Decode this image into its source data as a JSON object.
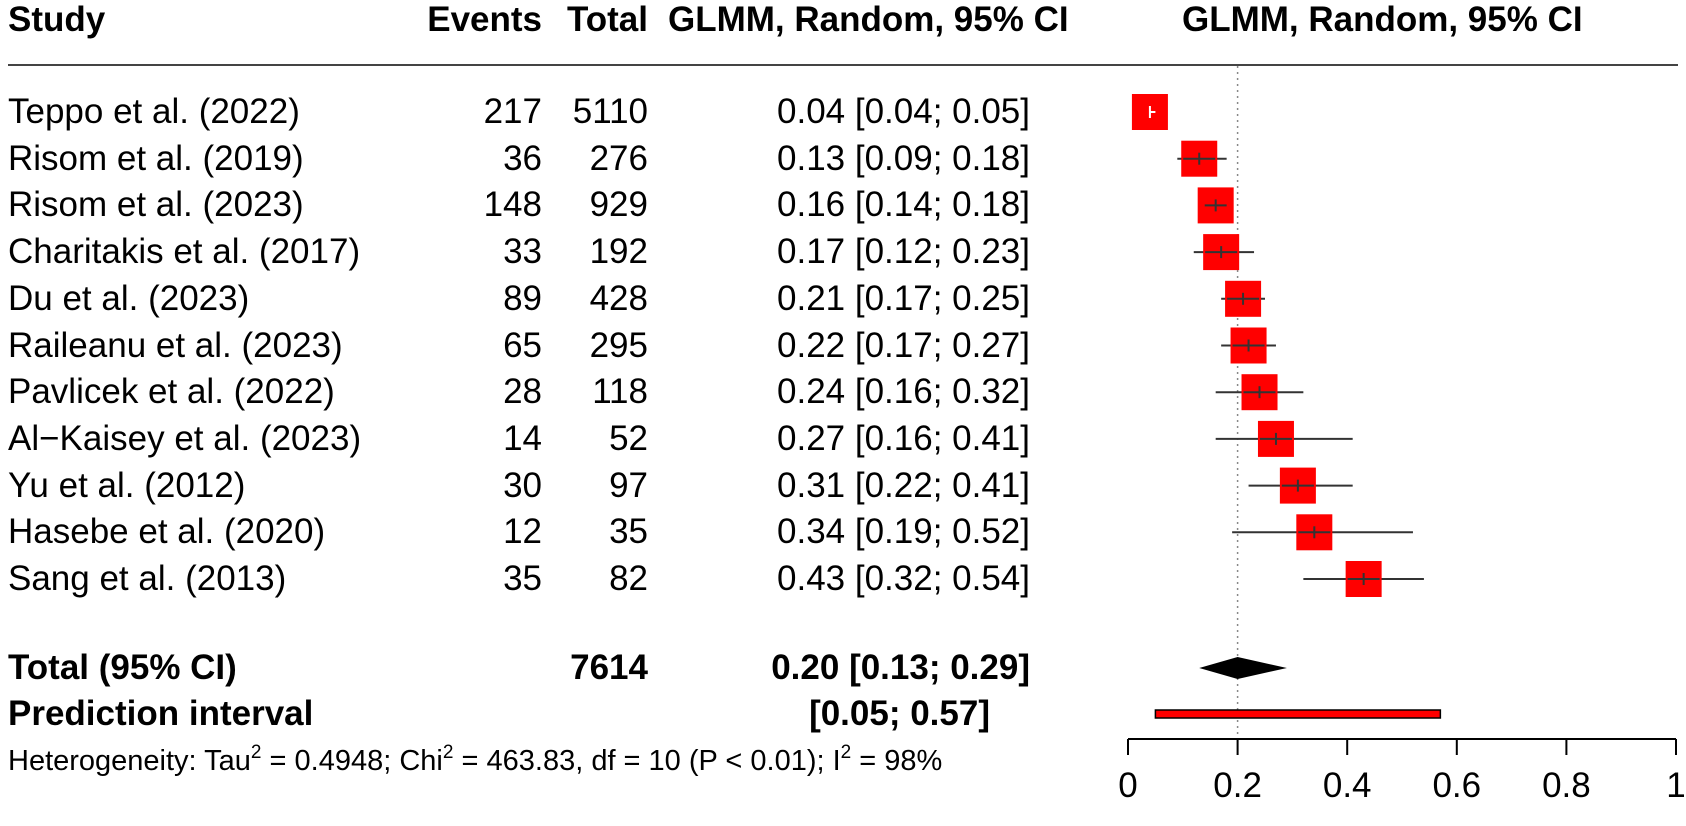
{
  "headers": {
    "study": "Study",
    "events": "Events",
    "total": "Total",
    "ci": "GLMM, Random, 95% CI",
    "plot": "GLMM, Random, 95% CI"
  },
  "studies": [
    {
      "name": "Teppo et al. (2022)",
      "events": "217",
      "total": "5110",
      "ci_text": "0.04 [0.04; 0.05]"
    },
    {
      "name": "Risom et al. (2019)",
      "events": "36",
      "total": "276",
      "ci_text": "0.13 [0.09; 0.18]"
    },
    {
      "name": "Risom et al. (2023)",
      "events": "148",
      "total": "929",
      "ci_text": "0.16 [0.14; 0.18]"
    },
    {
      "name": "Charitakis et al. (2017)",
      "events": "33",
      "total": "192",
      "ci_text": "0.17 [0.12; 0.23]"
    },
    {
      "name": "Du et al. (2023)",
      "events": "89",
      "total": "428",
      "ci_text": "0.21 [0.17; 0.25]"
    },
    {
      "name": "Raileanu et al. (2023)",
      "events": "65",
      "total": "295",
      "ci_text": "0.22 [0.17; 0.27]"
    },
    {
      "name": "Pavlicek et al. (2022)",
      "events": "28",
      "total": "118",
      "ci_text": "0.24 [0.16; 0.32]"
    },
    {
      "name": "Al−Kaisey et al. (2023)",
      "events": "14",
      "total": "52",
      "ci_text": "0.27 [0.16; 0.41]"
    },
    {
      "name": "Yu et al. (2012)",
      "events": "30",
      "total": "97",
      "ci_text": "0.31 [0.22; 0.41]"
    },
    {
      "name": "Hasebe et al. (2020)",
      "events": "12",
      "total": "35",
      "ci_text": "0.34 [0.19; 0.52]"
    },
    {
      "name": "Sang et al. (2013)",
      "events": "35",
      "total": "82",
      "ci_text": "0.43 [0.32; 0.54]"
    }
  ],
  "pooled": {
    "label": "Total (95% CI)",
    "total": "7614",
    "ci_text": "0.20 [0.13; 0.29]"
  },
  "prediction": {
    "label": "Prediction interval",
    "ci_text": "[0.05; 0.57]"
  },
  "heterogeneity": {
    "prefix": "Heterogeneity: Tau",
    "tau_sup": "2",
    "tau_value": " = 0.4948; Chi",
    "chi_sup": "2",
    "chi_value": " = 463.83, df = 10 (P < 0.01); I",
    "i_sup": "2",
    "i_value": " = 98%"
  },
  "colors": {
    "marker": "#ff0000",
    "ci_line": "#333333",
    "diamond": "#000000",
    "reference_line": "#888888"
  },
  "chart_data": {
    "type": "forest",
    "xlim": [
      0,
      1
    ],
    "ticks": [
      0,
      0.2,
      0.4,
      0.6,
      0.8,
      1
    ],
    "tick_labels": [
      "0",
      "0.2",
      "0.4",
      "0.6",
      "0.8",
      "1"
    ],
    "reference": 0.2,
    "studies": [
      {
        "name": "Teppo et al. (2022)",
        "est": 0.04,
        "lo": 0.04,
        "hi": 0.05
      },
      {
        "name": "Risom et al. (2019)",
        "est": 0.13,
        "lo": 0.09,
        "hi": 0.18
      },
      {
        "name": "Risom et al. (2023)",
        "est": 0.16,
        "lo": 0.14,
        "hi": 0.18
      },
      {
        "name": "Charitakis et al. (2017)",
        "est": 0.17,
        "lo": 0.12,
        "hi": 0.23
      },
      {
        "name": "Du et al. (2023)",
        "est": 0.21,
        "lo": 0.17,
        "hi": 0.25
      },
      {
        "name": "Raileanu et al. (2023)",
        "est": 0.22,
        "lo": 0.17,
        "hi": 0.27
      },
      {
        "name": "Pavlicek et al. (2022)",
        "est": 0.24,
        "lo": 0.16,
        "hi": 0.32
      },
      {
        "name": "Al−Kaisey et al. (2023)",
        "est": 0.27,
        "lo": 0.16,
        "hi": 0.41
      },
      {
        "name": "Yu et al. (2012)",
        "est": 0.31,
        "lo": 0.22,
        "hi": 0.41
      },
      {
        "name": "Hasebe et al. (2020)",
        "est": 0.34,
        "lo": 0.19,
        "hi": 0.52
      },
      {
        "name": "Sang et al. (2013)",
        "est": 0.43,
        "lo": 0.32,
        "hi": 0.54
      }
    ],
    "pooled": {
      "est": 0.2,
      "lo": 0.13,
      "hi": 0.29
    },
    "prediction_interval": {
      "lo": 0.05,
      "hi": 0.57
    }
  }
}
